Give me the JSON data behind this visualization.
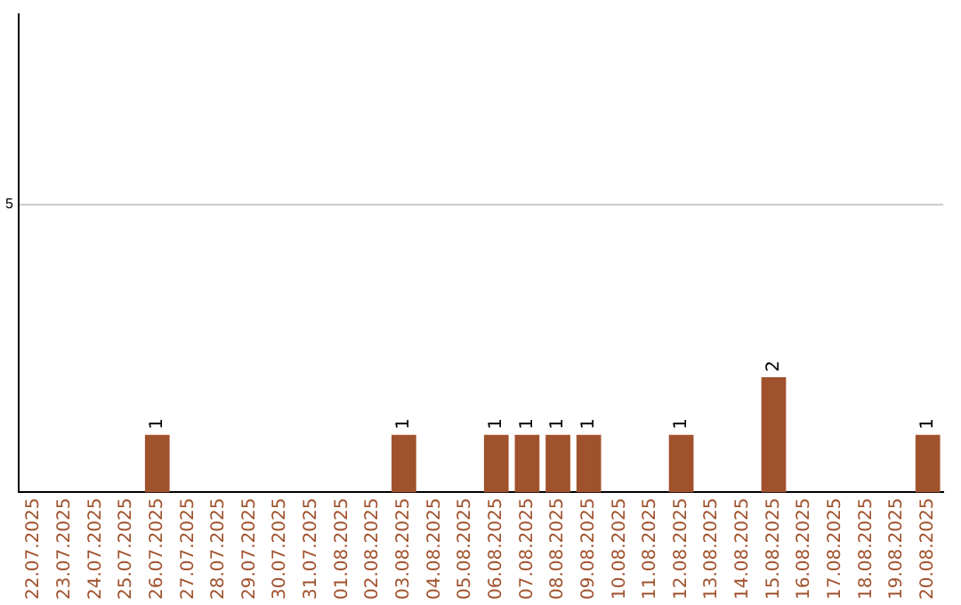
{
  "chart_data": {
    "type": "bar",
    "categories": [
      "22.07.2025",
      "23.07.2025",
      "24.07.2025",
      "25.07.2025",
      "26.07.2025",
      "27.07.2025",
      "28.07.2025",
      "29.07.2025",
      "30.07.2025",
      "31.07.2025",
      "01.08.2025",
      "02.08.2025",
      "03.08.2025",
      "04.08.2025",
      "05.08.2025",
      "06.08.2025",
      "07.08.2025",
      "08.08.2025",
      "09.08.2025",
      "10.08.2025",
      "11.08.2025",
      "12.08.2025",
      "13.08.2025",
      "14.08.2025",
      "15.08.2025",
      "16.08.2025",
      "17.08.2025",
      "18.08.2025",
      "19.08.2025",
      "20.08.2025"
    ],
    "values": [
      0,
      0,
      0,
      0,
      1,
      0,
      0,
      0,
      0,
      0,
      0,
      0,
      1,
      0,
      0,
      1,
      1,
      1,
      1,
      0,
      0,
      1,
      0,
      0,
      2,
      0,
      0,
      0,
      0,
      1
    ],
    "value_labels": [
      null,
      null,
      null,
      null,
      "1",
      null,
      null,
      null,
      null,
      null,
      null,
      null,
      "1",
      null,
      null,
      "1",
      "1",
      "1",
      "1",
      null,
      null,
      "1",
      null,
      null,
      "2",
      null,
      null,
      null,
      null,
      "1"
    ],
    "color": "#a0522d",
    "ylim": [
      0,
      8.3
    ],
    "yticks": [
      5
    ],
    "grid": "y",
    "legend": false
  }
}
